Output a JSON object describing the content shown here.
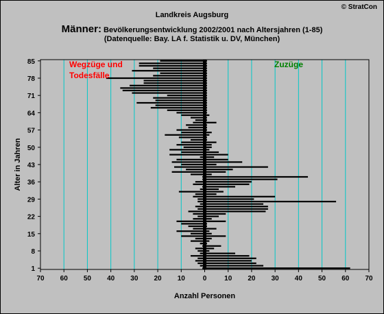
{
  "header": {
    "copyright": "© StratCon",
    "region": "Landkreis Augsburg",
    "title_main": "Männer:",
    "title_sub": " Bevölkerungsentwicklung 2002/2001 nach Altersjahren (1-85)",
    "source": "(Datenquelle: Bay. LA f. Statistik u. DV, München)"
  },
  "colors": {
    "background": "#c0c0c0",
    "gridline": "#00c8c8",
    "bars": "#000000",
    "left_label": "#ff0000",
    "right_label": "#008000"
  },
  "chart_data": {
    "type": "bar",
    "orientation": "horizontal",
    "xlabel": "Anzahl Personen",
    "ylabel": "Alter in Jahren",
    "xlim": [
      -70,
      70
    ],
    "x_ticks": [
      -70,
      -60,
      -50,
      -40,
      -30,
      -20,
      -10,
      0,
      10,
      20,
      30,
      40,
      50,
      60,
      70
    ],
    "x_tick_labels": [
      "70",
      "60",
      "50",
      "40",
      "30",
      "20",
      "10",
      "0",
      "10",
      "20",
      "30",
      "40",
      "50",
      "60",
      "70"
    ],
    "ylim": [
      1,
      85
    ],
    "y_ticks": [
      1,
      8,
      15,
      22,
      29,
      36,
      43,
      50,
      57,
      64,
      71,
      78,
      85
    ],
    "grid": true,
    "annotations": {
      "left": [
        "Wegzüge und",
        "Todesfälle"
      ],
      "right": "Zuzüge"
    },
    "ages": [
      1,
      2,
      3,
      4,
      5,
      6,
      7,
      8,
      9,
      10,
      11,
      12,
      13,
      14,
      15,
      16,
      17,
      18,
      19,
      20,
      21,
      22,
      23,
      24,
      25,
      26,
      27,
      28,
      29,
      30,
      31,
      32,
      33,
      34,
      35,
      36,
      37,
      38,
      39,
      40,
      41,
      42,
      43,
      44,
      45,
      46,
      47,
      48,
      49,
      50,
      51,
      52,
      53,
      54,
      55,
      56,
      57,
      58,
      59,
      60,
      61,
      62,
      63,
      64,
      65,
      66,
      67,
      68,
      69,
      70,
      71,
      72,
      73,
      74,
      75,
      76,
      77,
      78,
      79,
      80,
      81,
      82,
      83,
      84,
      85
    ],
    "series": [
      {
        "name": "Wegzüge und Todesfälle",
        "values": [
          -1,
          -2,
          -3,
          -4,
          -3,
          -6,
          -2,
          -3,
          -4,
          -1,
          -2,
          -6,
          -4,
          -10,
          -6,
          -12,
          -5,
          -7,
          -10,
          -12,
          -5,
          -3,
          -5,
          -7,
          -3,
          -4,
          -2,
          -3,
          -3,
          -5,
          -4,
          -11,
          -2,
          -1,
          -5,
          -4,
          -1,
          -1,
          -6,
          -14,
          -8,
          -13,
          -10,
          -14,
          -12,
          -2,
          -15,
          -10,
          -15,
          -9,
          -12,
          -10,
          -6,
          -11,
          -17,
          -10,
          -12,
          -7,
          -8,
          -5,
          -4,
          -6,
          -10,
          -12,
          -16,
          -23,
          -21,
          -29,
          -21,
          -22,
          -16,
          -31,
          -35,
          -36,
          -32,
          -26,
          -26,
          -42,
          -22,
          -19,
          -31,
          -22,
          -28,
          -28,
          -19
        ]
      },
      {
        "name": "Zuzüge",
        "values": [
          62,
          25,
          22,
          20,
          22,
          19,
          13,
          2,
          4,
          7,
          1,
          2,
          3,
          9,
          3,
          2,
          5,
          1,
          1,
          9,
          3,
          6,
          9,
          26,
          27,
          27,
          25,
          56,
          21,
          30,
          5,
          8,
          6,
          13,
          19,
          20,
          31,
          44,
          3,
          9,
          12,
          27,
          5,
          16,
          10,
          4,
          10,
          6,
          2,
          3,
          3,
          5,
          1,
          1,
          2,
          3,
          1,
          1,
          1,
          5,
          1,
          1,
          2,
          1,
          1,
          1,
          1,
          1,
          1,
          1,
          1,
          1,
          1,
          1,
          1,
          1,
          1,
          1,
          1,
          1,
          1,
          1,
          1,
          1,
          1
        ]
      }
    ]
  }
}
